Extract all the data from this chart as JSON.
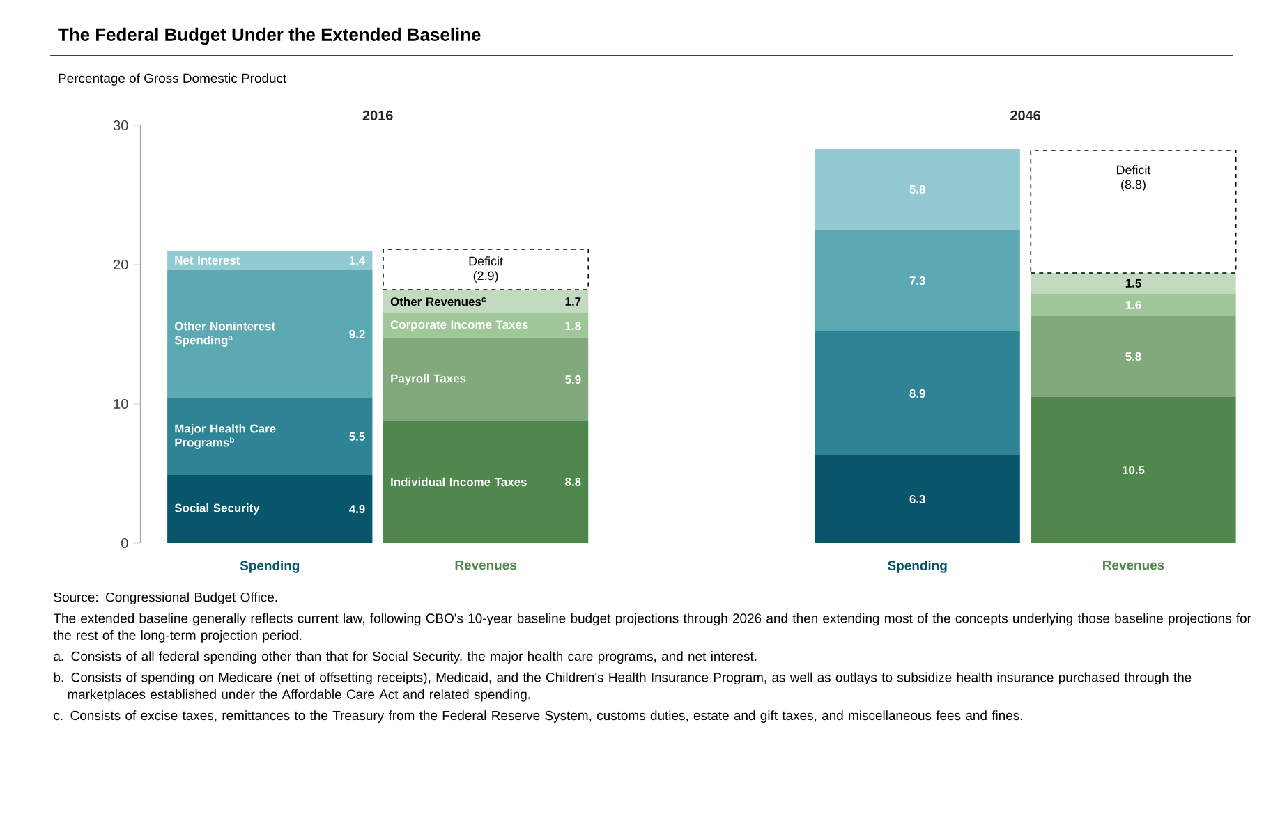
{
  "chart_data": {
    "type": "bar",
    "stacked": true,
    "title": "The Federal Budget Under the Extended Baseline",
    "ylabel": "Percentage of Gross Domestic Product",
    "categories": [
      "Spending",
      "Revenues",
      null,
      "Spending",
      "Revenues"
    ],
    "series": [
      {
        "name": "Social Security",
        "color": "#08566b",
        "values": [
          4.9,
          null,
          null,
          6.3,
          null
        ]
      },
      {
        "name": "Major Health Care Programs$^{b}$",
        "color": "#2e8494",
        "values": [
          5.5,
          null,
          null,
          8.9,
          null
        ]
      },
      {
        "name": "Other Noninterest Spending$^{a}$",
        "color": "#5ca9b4",
        "values": [
          9.2,
          null,
          null,
          7.3,
          null
        ]
      },
      {
        "name": "Net Interest",
        "color": "#93cad2",
        "values": [
          1.4,
          null,
          null,
          5.8,
          null
        ]
      },
      {
        "name": "Individual Income Taxes",
        "color": "#4f874d",
        "values": [
          null,
          8.8,
          null,
          null,
          10.5
        ]
      },
      {
        "name": "Payroll Taxes",
        "color": "#82a87e",
        "values": [
          null,
          5.9,
          null,
          null,
          5.8
        ]
      },
      {
        "name": "Corporate Income Taxes",
        "color": "#a0c79a",
        "values": [
          null,
          1.8,
          null,
          null,
          1.6
        ]
      },
      {
        "name": "Other Revenues$^{c}$",
        "color": "#c2dbc0",
        "values": [
          null,
          1.7,
          null,
          null,
          1.5
        ]
      },
      {
        "name": "Deficit",
        "color": "#ffffff",
        "line_style": "dashed",
        "values": [
          null,
          2.9,
          null,
          null,
          8.8
        ],
        "value_labels": [
          null,
          "(2.9)",
          null,
          null,
          "(8.8)"
        ]
      }
    ],
    "data_labels": true,
    "ylim": [
      0,
      30
    ],
    "yticks": [
      0,
      10,
      20,
      30
    ],
    "grid": false,
    "annotations": [
      "2016",
      "2046",
      "Source: Congressional Budget Office.",
      "The extended baseline generally reflects current law, following CBO's 10-year baseline budget projections through 2026 and then extending most of the concepts underlying those baseline projections for the rest of the long-term projection period.",
      "a. Consists of all federal spending other than that for Social Security, the major health care programs, and net interest.",
      "b. Consists of spending on Medicare (net of offsetting receipts), Medicaid, and the Children's Health Insurance Program, as well as outlays to subsidize health insurance purchased through the marketplaces established under the Affordable Care Act and related spending.",
      "c. Consists of excise taxes, remittances to the Treasury from the Federal Reserve System, customs duties, estate and gift taxes, and miscellaneous fees and fines."
    ]
  }
}
